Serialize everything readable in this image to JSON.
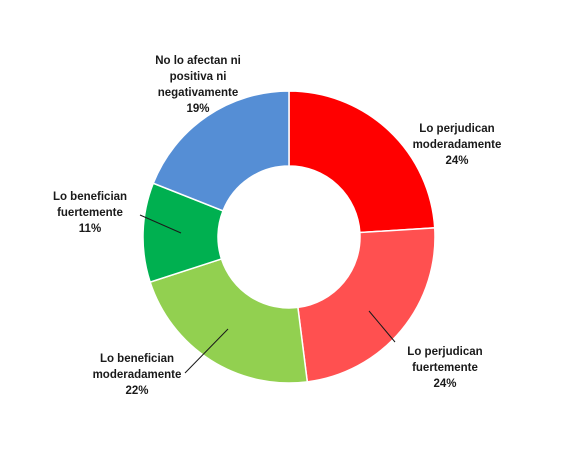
{
  "chart_data": {
    "type": "pie",
    "variant": "doughnut",
    "title": "",
    "legend": "none",
    "slices": [
      {
        "label_lines": [
          "Lo perjudican",
          "moderadamente"
        ],
        "label": "Lo perjudican moderadamente",
        "value": 24,
        "value_label": "24%",
        "color": "#ff0000"
      },
      {
        "label_lines": [
          "Lo perjudican",
          "fuertemente"
        ],
        "label": "Lo perjudican fuertemente",
        "value": 24,
        "value_label": "24%",
        "color": "#ff5050"
      },
      {
        "label_lines": [
          "Lo benefician",
          "moderadamente"
        ],
        "label": "Lo benefician moderadamente",
        "value": 22,
        "value_label": "22%",
        "color": "#92d050"
      },
      {
        "label_lines": [
          "Lo benefician",
          "fuertemente"
        ],
        "label": "Lo benefician fuertemente",
        "value": 11,
        "value_label": "11%",
        "color": "#00b050"
      },
      {
        "label_lines": [
          "No lo afectan ni",
          "positiva ni",
          "negativamente"
        ],
        "label": "No lo afectan ni positiva ni negativamente",
        "value": 19,
        "value_label": "19%",
        "color": "#558ed5"
      }
    ]
  }
}
